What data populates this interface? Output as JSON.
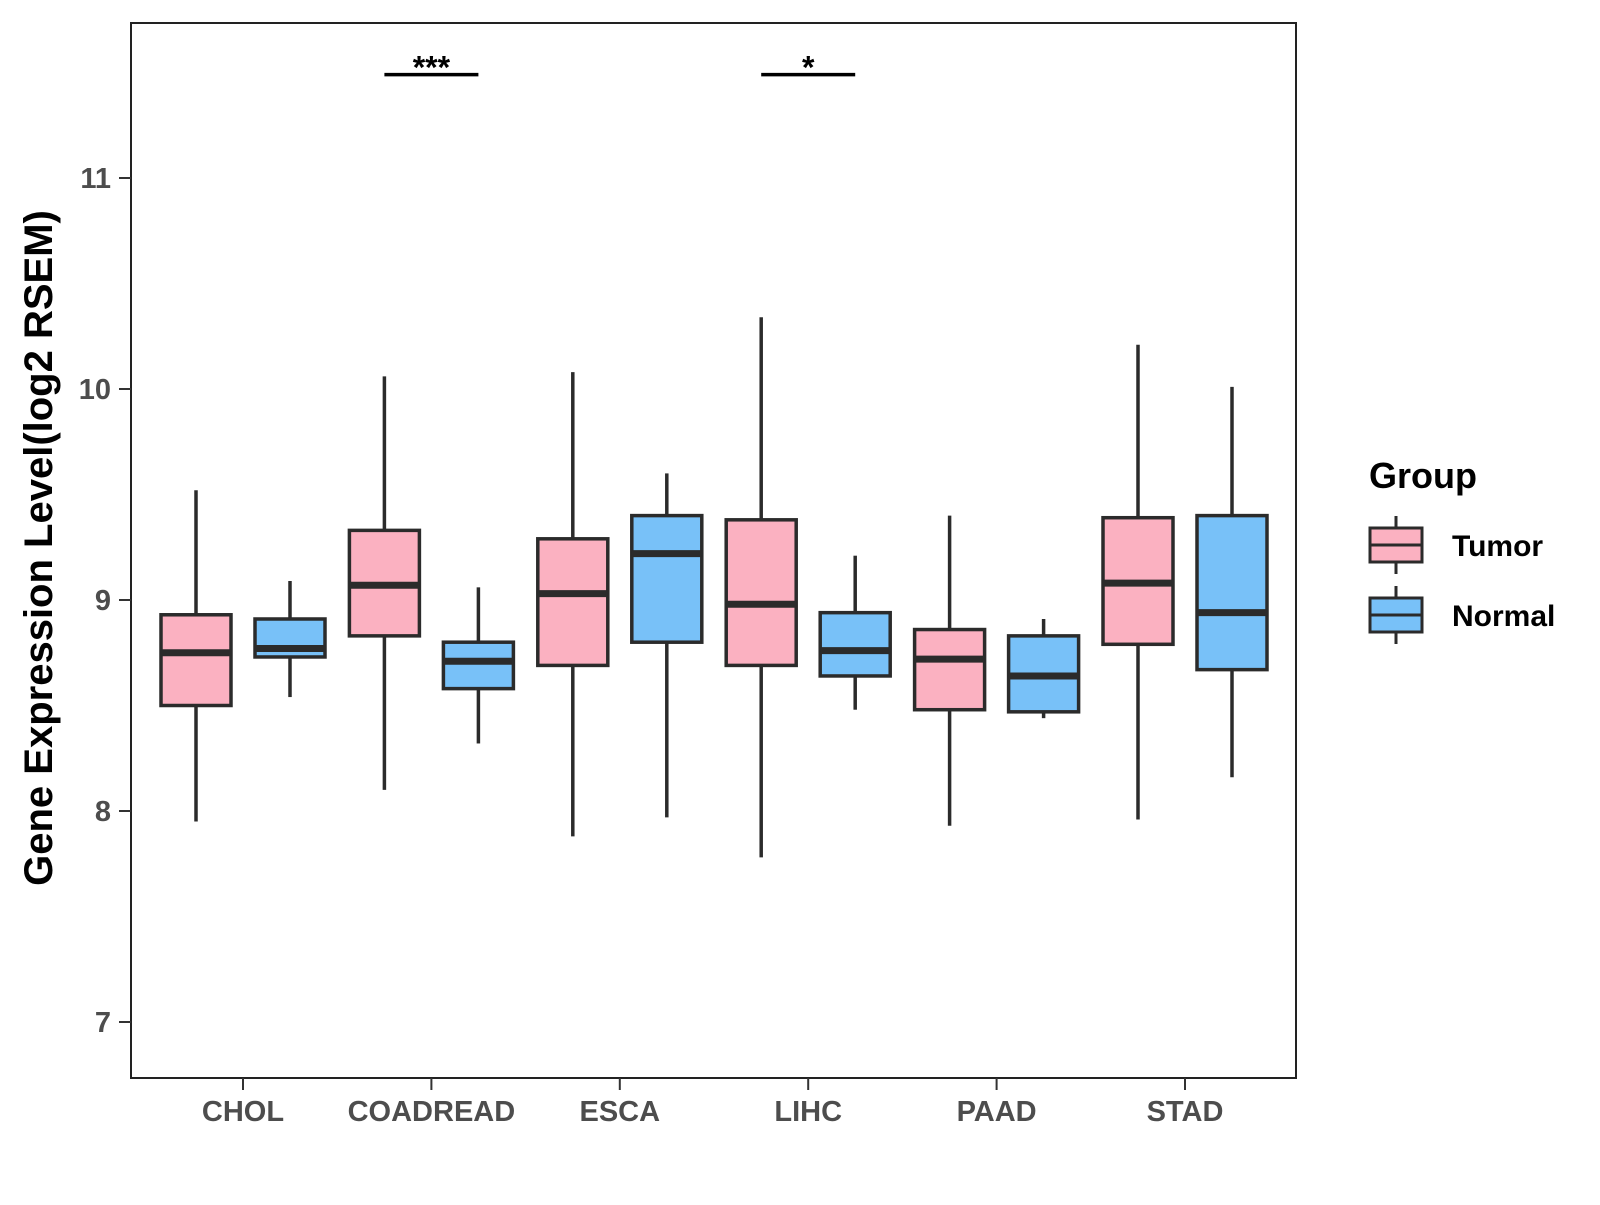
{
  "chart_data": {
    "type": "boxplot",
    "title": "",
    "xlabel": "",
    "ylabel": "Gene Expression Level(log2 RSEM)",
    "ylim": [
      6.74,
      11.74
    ],
    "yticks": [
      7,
      8,
      9,
      10,
      11
    ],
    "categories": [
      "CHOL",
      "COADREAD",
      "ESCA",
      "LIHC",
      "PAAD",
      "STAD"
    ],
    "legend": {
      "title": "Group",
      "position": "right",
      "entries": [
        {
          "name": "Tumor",
          "color": "#FBB1C1"
        },
        {
          "name": "Normal",
          "color": "#78C1F8"
        }
      ]
    },
    "series": [
      {
        "name": "Tumor",
        "color": "#FBB1C1",
        "boxes": [
          {
            "category": "CHOL",
            "min": 7.95,
            "q1": 8.5,
            "median": 8.75,
            "q3": 8.93,
            "max": 9.52
          },
          {
            "category": "COADREAD",
            "min": 8.1,
            "q1": 8.83,
            "median": 9.07,
            "q3": 9.33,
            "max": 10.06
          },
          {
            "category": "ESCA",
            "min": 7.88,
            "q1": 8.69,
            "median": 9.03,
            "q3": 9.29,
            "max": 10.08
          },
          {
            "category": "LIHC",
            "min": 7.78,
            "q1": 8.69,
            "median": 8.98,
            "q3": 9.38,
            "max": 10.34
          },
          {
            "category": "PAAD",
            "min": 7.93,
            "q1": 8.48,
            "median": 8.72,
            "q3": 8.86,
            "max": 9.4
          },
          {
            "category": "STAD",
            "min": 7.96,
            "q1": 8.79,
            "median": 9.08,
            "q3": 9.39,
            "max": 10.21
          }
        ]
      },
      {
        "name": "Normal",
        "color": "#78C1F8",
        "boxes": [
          {
            "category": "CHOL",
            "min": 8.54,
            "q1": 8.73,
            "median": 8.77,
            "q3": 8.91,
            "max": 9.09
          },
          {
            "category": "COADREAD",
            "min": 8.32,
            "q1": 8.58,
            "median": 8.71,
            "q3": 8.8,
            "max": 9.06
          },
          {
            "category": "ESCA",
            "min": 7.97,
            "q1": 8.8,
            "median": 9.22,
            "q3": 9.4,
            "max": 9.6
          },
          {
            "category": "LIHC",
            "min": 8.48,
            "q1": 8.64,
            "median": 8.76,
            "q3": 8.94,
            "max": 9.21
          },
          {
            "category": "PAAD",
            "min": 8.44,
            "q1": 8.47,
            "median": 8.64,
            "q3": 8.83,
            "max": 8.91
          },
          {
            "category": "STAD",
            "min": 8.16,
            "q1": 8.67,
            "median": 8.94,
            "q3": 9.4,
            "max": 10.01
          }
        ]
      }
    ],
    "annotations": [
      {
        "category": "COADREAD",
        "label": "***",
        "y": 11.49
      },
      {
        "category": "LIHC",
        "label": "*",
        "y": 11.49
      }
    ]
  }
}
